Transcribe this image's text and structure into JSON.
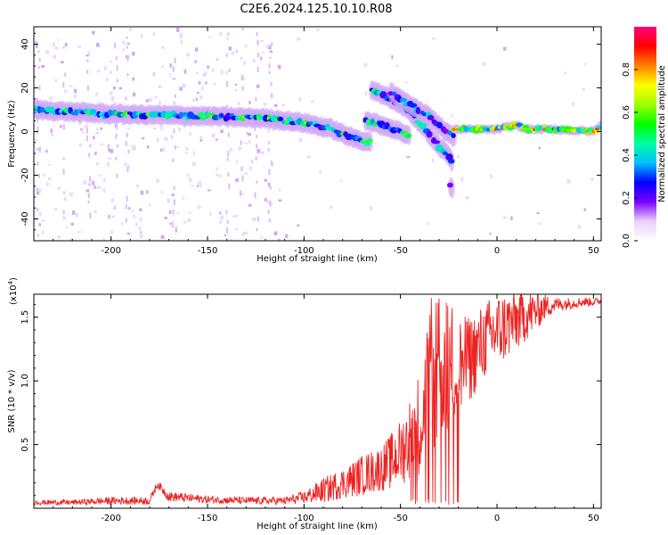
{
  "title": "C2E6.2024.125.10.10.R08",
  "chart_data": [
    {
      "type": "heatmap",
      "xlabel": "Height of straight line (km)",
      "ylabel": "Frequency (Hz)",
      "xlim": [
        -240,
        54
      ],
      "ylim": [
        -50,
        48
      ],
      "x_ticks": [
        -200,
        -150,
        -100,
        -50,
        0,
        50
      ],
      "y_ticks": [
        40,
        20,
        0,
        -20,
        -40
      ],
      "colorbar": {
        "label": "Normalized spectral amplitude",
        "range": [
          0.0,
          1.0
        ],
        "ticks": [
          0.0,
          0.2,
          0.4,
          0.6,
          0.8
        ],
        "colormap": [
          "#ffffff",
          "#e9d1fa",
          "#7a00ff",
          "#0000ff",
          "#00c0ff",
          "#00ffa0",
          "#00ff00",
          "#a0ff00",
          "#ffff00",
          "#ff8000",
          "#ff0000",
          "#ff0080"
        ]
      },
      "ridges": [
        {
          "points": [
            [
              -240,
              10
            ],
            [
              -200,
              8
            ],
            [
              -150,
              7
            ],
            [
              -120,
              6
            ],
            [
              -100,
              4
            ],
            [
              -85,
              1
            ],
            [
              -75,
              -3
            ],
            [
              -65,
              -5
            ]
          ],
          "amplitude": 0.5
        },
        {
          "points": [
            [
              -68,
              5
            ],
            [
              -60,
              3
            ],
            [
              -50,
              0
            ],
            [
              -45,
              -2
            ]
          ],
          "amplitude": 0.5
        },
        {
          "points": [
            [
              -65,
              19
            ],
            [
              -55,
              15
            ],
            [
              -45,
              9
            ],
            [
              -38,
              2
            ],
            [
              -32,
              -5
            ],
            [
              -25,
              -11
            ],
            [
              -23,
              -14
            ]
          ],
          "amplitude": 0.45
        },
        {
          "points": [
            [
              -55,
              18
            ],
            [
              -45,
              12
            ],
            [
              -35,
              7
            ],
            [
              -28,
              1
            ],
            [
              -22,
              -3
            ]
          ],
          "amplitude": 0.4
        },
        {
          "points": [
            [
              -24,
              -25
            ],
            [
              -23,
              -27
            ]
          ],
          "amplitude": 0.3
        },
        {
          "points": [
            [
              -22,
              1
            ],
            [
              0,
              1
            ],
            [
              5,
              2
            ],
            [
              10,
              3
            ],
            [
              15,
              1
            ],
            [
              30,
              1
            ],
            [
              50,
              0
            ],
            [
              54,
              3
            ]
          ],
          "amplitude": 0.7
        }
      ]
    },
    {
      "type": "line",
      "xlabel": "Height of straight line (km)",
      "ylabel": "SNR (10 * v/v)",
      "y_multiplier": "(x10",
      "y_multiplier_exp": "4",
      "y_multiplier_close": ")",
      "xlim": [
        -240,
        54
      ],
      "ylim": [
        0,
        1.68
      ],
      "x_ticks": [
        -200,
        -150,
        -100,
        -50,
        0,
        50
      ],
      "y_ticks": [
        0.5,
        1.0,
        1.5
      ],
      "series": [
        {
          "color": "#ee2222",
          "x": [
            -240,
            -220,
            -200,
            -180,
            -176,
            -170,
            -150,
            -130,
            -110,
            -100,
            -90,
            -80,
            -70,
            -60,
            -55,
            -50,
            -45,
            -40,
            -35,
            -30,
            -25,
            -20,
            -15,
            -10,
            -5,
            0,
            5,
            10,
            15,
            20,
            25,
            30,
            35,
            40,
            45,
            50,
            54
          ],
          "y": [
            0.04,
            0.04,
            0.05,
            0.05,
            0.18,
            0.08,
            0.06,
            0.05,
            0.05,
            0.07,
            0.11,
            0.16,
            0.21,
            0.26,
            0.3,
            0.36,
            0.45,
            0.55,
            0.8,
            0.9,
            0.95,
            1.0,
            1.05,
            1.15,
            1.25,
            1.3,
            1.35,
            1.4,
            1.45,
            1.5,
            1.55,
            1.58,
            1.59,
            1.6,
            1.61,
            1.61,
            1.62
          ],
          "noise": [
            0.02,
            0.02,
            0.03,
            0.03,
            0.03,
            0.04,
            0.03,
            0.03,
            0.03,
            0.05,
            0.1,
            0.12,
            0.16,
            0.18,
            0.22,
            0.26,
            0.34,
            0.42,
            0.55,
            0.6,
            0.55,
            0.4,
            0.35,
            0.32,
            0.3,
            0.3,
            0.28,
            0.25,
            0.2,
            0.16,
            0.1,
            0.06,
            0.05,
            0.04,
            0.04,
            0.03,
            0.03
          ]
        }
      ]
    }
  ]
}
